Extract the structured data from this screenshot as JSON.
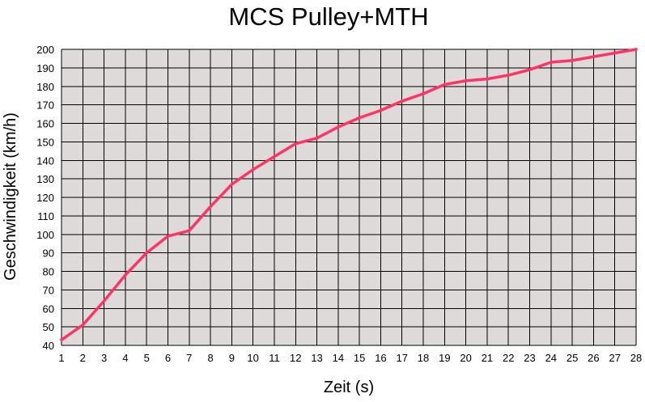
{
  "chart_data": {
    "type": "line",
    "title": "MCS Pulley+MTH",
    "xlabel": "Zeit (s)",
    "ylabel": "Geschwindigkeit (km/h)",
    "x": [
      1,
      2,
      3,
      4,
      5,
      6,
      7,
      8,
      9,
      10,
      11,
      12,
      13,
      14,
      15,
      16,
      17,
      18,
      19,
      20,
      21,
      22,
      23,
      24,
      25,
      26,
      27,
      28
    ],
    "series": [
      {
        "values": [
          43,
          51,
          64,
          78,
          90,
          99,
          102,
          115,
          127,
          135,
          142,
          149,
          152,
          158,
          163,
          167,
          172,
          176,
          181,
          183,
          184,
          186,
          189,
          193,
          194,
          196,
          198,
          200
        ],
        "color": "#ff3366"
      }
    ],
    "xlim": [
      1,
      28
    ],
    "ylim": [
      40,
      200
    ],
    "ytick_step": 10,
    "grid": true,
    "colors": {
      "plot_background": "#dedada",
      "grid": "#000000"
    }
  }
}
